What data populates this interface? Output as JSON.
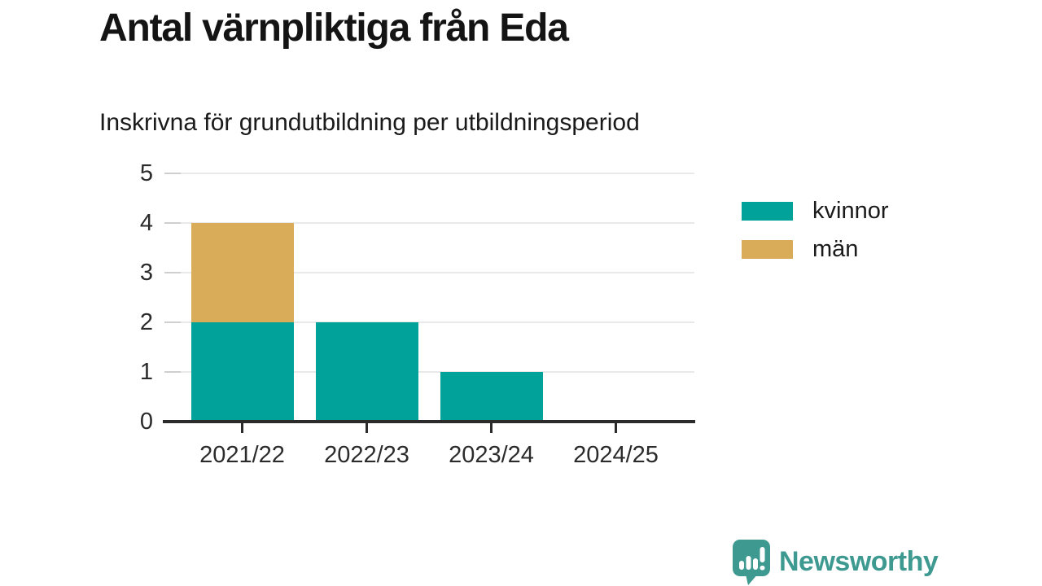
{
  "title": "Antal värnpliktiga från Eda",
  "subtitle": "Inskrivna för grundutbildning per utbildningsperiod",
  "chart_data": {
    "type": "bar",
    "stacked": true,
    "title": "Antal värnpliktiga från Eda",
    "subtitle": "Inskrivna för grundutbildning per utbildningsperiod",
    "categories": [
      "2021/22",
      "2022/23",
      "2023/24",
      "2024/25"
    ],
    "series": [
      {
        "name": "kvinnor",
        "color": "#00a29a",
        "values": [
          2,
          2,
          1,
          0
        ]
      },
      {
        "name": "män",
        "color": "#d9ac5a",
        "values": [
          2,
          0,
          0,
          0
        ]
      }
    ],
    "totals": [
      4,
      2,
      1,
      0
    ],
    "xlabel": "",
    "ylabel": "",
    "ylim": [
      0,
      5
    ],
    "yticks": [
      0,
      1,
      2,
      3,
      4,
      5
    ],
    "grid": true,
    "legend_position": "right"
  },
  "branding": {
    "wordmark": "Newsworthy",
    "logo_icon": "newsworthy-speech-bubble-barchart-icon",
    "brand_color": "#3e9a91"
  },
  "colors": {
    "kvinnor": "#00a29a",
    "man": "#d9ac5a",
    "axis": "#2b2b2b",
    "gridline": "#e9e9e9",
    "tick_dash": "#cfcfcf",
    "text": "#1a1a1a",
    "background": "#ffffff"
  }
}
